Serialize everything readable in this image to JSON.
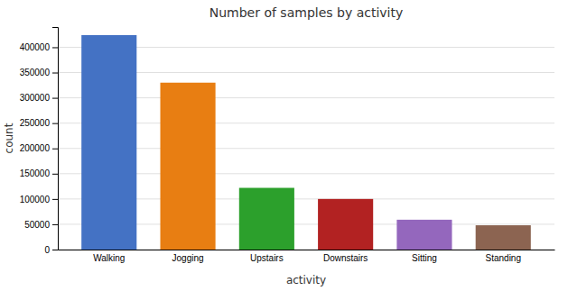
{
  "chart_data": {
    "type": "bar",
    "title": "Number of samples by activity",
    "xlabel": "activity",
    "ylabel": "count",
    "categories": [
      "Walking",
      "Jogging",
      "Upstairs",
      "Downstairs",
      "Sitting",
      "Standing"
    ],
    "values": [
      424000,
      330000,
      122000,
      100000,
      59000,
      48000
    ],
    "colors": [
      "#4472c4",
      "#e87e12",
      "#2ca02c",
      "#b22222",
      "#9467bd",
      "#8c6451"
    ],
    "ylim": [
      0,
      440000
    ],
    "yticks": [
      0,
      50000,
      100000,
      150000,
      200000,
      250000,
      300000,
      350000,
      400000
    ],
    "grid": true
  }
}
